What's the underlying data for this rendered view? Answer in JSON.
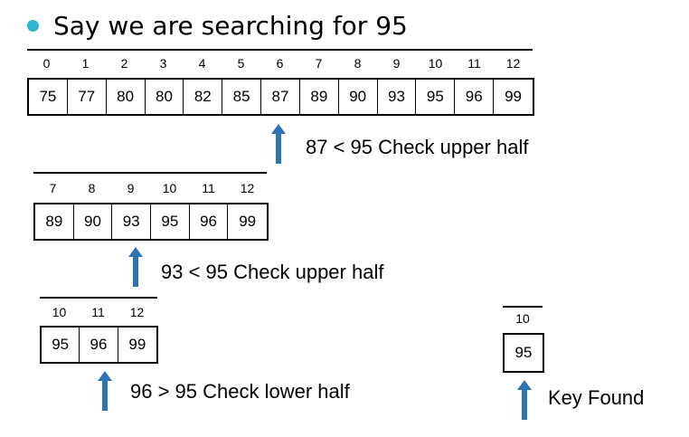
{
  "title": "Say we are searching for 95",
  "colors": {
    "bullet": "#2bb8d0",
    "arrow": "#2e74b5"
  },
  "steps": [
    {
      "indices": [
        "0",
        "1",
        "2",
        "3",
        "4",
        "5",
        "6",
        "7",
        "8",
        "9",
        "10",
        "11",
        "12"
      ],
      "values": [
        "75",
        "77",
        "80",
        "80",
        "82",
        "85",
        "87",
        "89",
        "90",
        "93",
        "95",
        "96",
        "99"
      ],
      "caption": "87 < 95 Check upper half"
    },
    {
      "indices": [
        "7",
        "8",
        "9",
        "10",
        "11",
        "12"
      ],
      "values": [
        "89",
        "90",
        "93",
        "95",
        "96",
        "99"
      ],
      "caption": "93 < 95 Check upper half"
    },
    {
      "indices": [
        "10",
        "11",
        "12"
      ],
      "values": [
        "95",
        "96",
        "99"
      ],
      "caption": "96 > 95 Check lower half"
    },
    {
      "indices": [
        "10"
      ],
      "values": [
        "95"
      ],
      "caption": "Key Found"
    }
  ]
}
